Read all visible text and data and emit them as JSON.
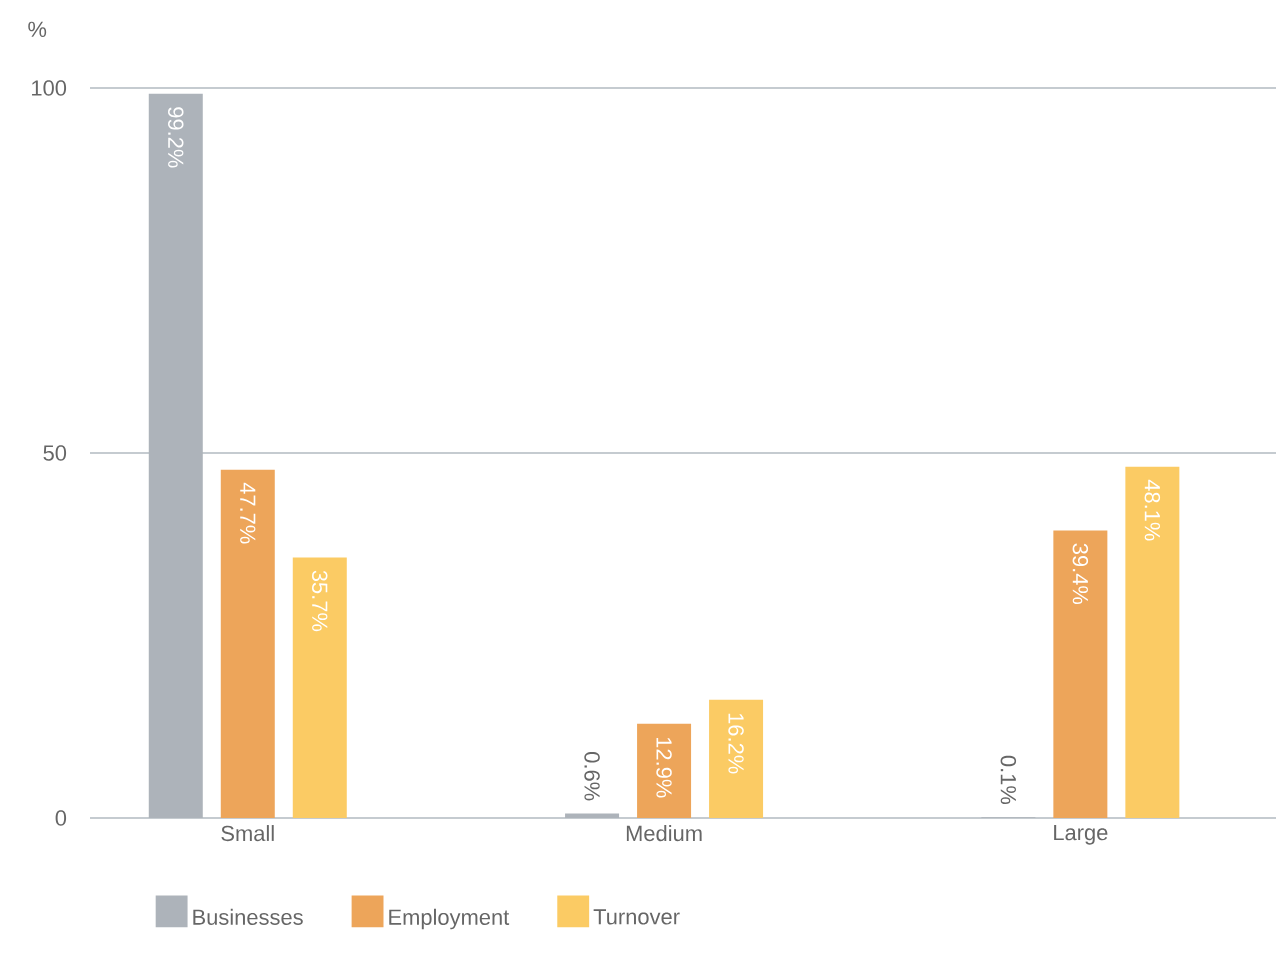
{
  "chart_data": {
    "type": "bar",
    "ylabel": "%",
    "categories": [
      "Small",
      "Medium",
      "Large"
    ],
    "series": [
      {
        "name": "Businesses",
        "color": "#adb3ba",
        "values": [
          99.2,
          0.6,
          0.1
        ],
        "value_labels": [
          "99.2%",
          "0.6%",
          "0.1%"
        ]
      },
      {
        "name": "Employment",
        "color": "#eda55a",
        "values": [
          47.7,
          12.9,
          39.4
        ],
        "value_labels": [
          "47.7%",
          "12.9%",
          "39.4%"
        ]
      },
      {
        "name": "Turnover",
        "color": "#fbcb64",
        "values": [
          35.7,
          16.2,
          48.1
        ],
        "value_labels": [
          "35.7%",
          "16.2%",
          "48.1%"
        ]
      }
    ],
    "ylim": [
      0,
      100
    ],
    "yticks": [
      0,
      50,
      100
    ],
    "grid": "y",
    "legend": "bottom"
  }
}
